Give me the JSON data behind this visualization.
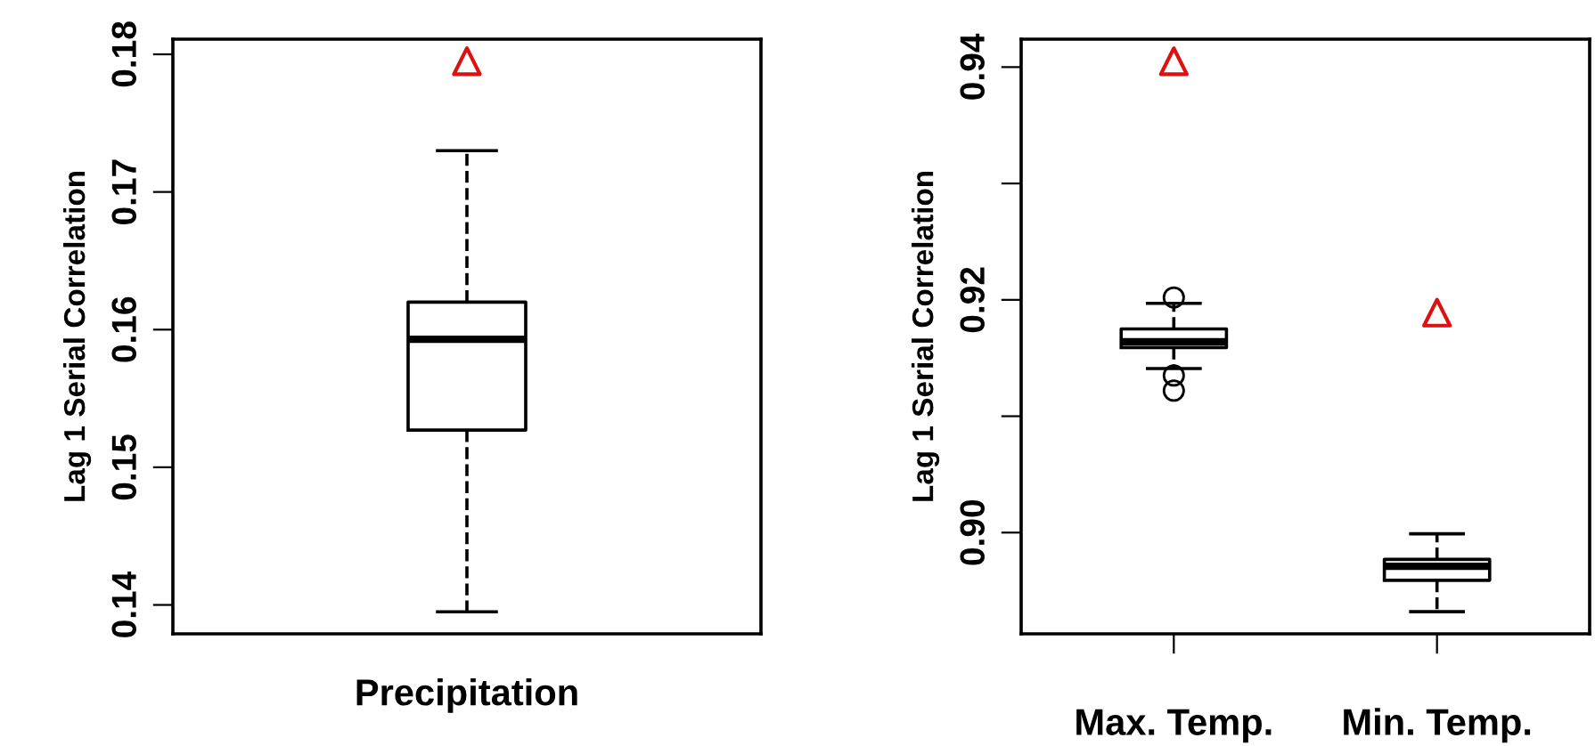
{
  "chart_data": [
    {
      "type": "box",
      "ylabel": "Lag 1 Serial Correlation",
      "categories": [
        "Precipitation"
      ],
      "boxes": [
        {
          "low": 0.1395,
          "q1": 0.1527,
          "median": 0.1593,
          "q3": 0.162,
          "high": 0.173
        }
      ],
      "series": [
        {
          "type": "scatter",
          "marker": "triangle",
          "color": "#dd1111",
          "x": [
            "Precipitation"
          ],
          "values": [
            0.1795
          ]
        }
      ],
      "ylim": [
        0.1379,
        0.1811
      ],
      "yticks": [
        0.14,
        0.15,
        0.16,
        0.17,
        0.18
      ],
      "grid": false,
      "legend": false
    },
    {
      "type": "box",
      "ylabel": "Lag 1 Serial Correlation",
      "categories": [
        "Max. Temp.",
        "Min. Temp."
      ],
      "boxes": [
        {
          "low": 0.9141,
          "q1": 0.9159,
          "median": 0.9164,
          "q3": 0.9175,
          "high": 0.9197,
          "outliers": [
            0.9202,
            0.9135,
            0.9122
          ]
        },
        {
          "low": 0.8932,
          "q1": 0.8959,
          "median": 0.8971,
          "q3": 0.8977,
          "high": 0.8999
        }
      ],
      "series": [
        {
          "type": "scatter",
          "marker": "triangle",
          "color": "#dd1111",
          "x": [
            "Max. Temp.",
            "Min. Temp."
          ],
          "values": [
            0.9405,
            0.9189
          ]
        }
      ],
      "ylim": [
        0.8913,
        0.9424
      ],
      "yticks": [
        {
          "value": 0.9,
          "label": "0.90"
        },
        {
          "value": 0.91,
          "label": null
        },
        {
          "value": 0.92,
          "label": "0.92"
        },
        {
          "value": 0.93,
          "label": null
        },
        {
          "value": 0.94,
          "label": "0.94"
        }
      ],
      "grid": false,
      "legend": false
    }
  ]
}
